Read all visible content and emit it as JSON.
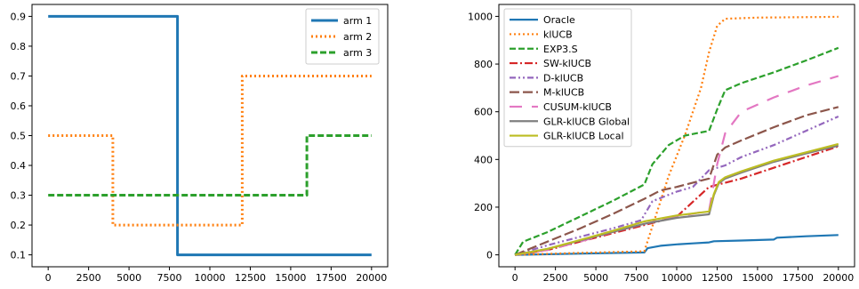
{
  "chart_data": [
    {
      "type": "line",
      "xlim": [
        -1000,
        21000
      ],
      "ylim": [
        0.06,
        0.94
      ],
      "xticks": [
        0,
        2500,
        5000,
        7500,
        10000,
        12500,
        15000,
        17500,
        20000
      ],
      "yticks": [
        0.1,
        0.2,
        0.3,
        0.4,
        0.5,
        0.6,
        0.7,
        0.8,
        0.9
      ],
      "legend_position": "top-right",
      "series": [
        {
          "name": "arm 1",
          "color": "#1f77b4",
          "dash": "solid",
          "x": [
            0,
            8000,
            8000,
            20000
          ],
          "y": [
            0.9,
            0.9,
            0.1,
            0.1
          ]
        },
        {
          "name": "arm 2",
          "color": "#ff7f0e",
          "dash": "dotted",
          "x": [
            0,
            4000,
            4000,
            12000,
            12000,
            20000
          ],
          "y": [
            0.5,
            0.5,
            0.2,
            0.2,
            0.7,
            0.7
          ]
        },
        {
          "name": "arm 3",
          "color": "#2ca02c",
          "dash": "dashed",
          "x": [
            0,
            16000,
            16000,
            20000
          ],
          "y": [
            0.3,
            0.3,
            0.5,
            0.5
          ]
        }
      ]
    },
    {
      "type": "line",
      "xlim": [
        -1000,
        21000
      ],
      "ylim": [
        -50,
        1050
      ],
      "xticks": [
        0,
        2500,
        5000,
        7500,
        10000,
        12500,
        15000,
        17500,
        20000
      ],
      "yticks": [
        0,
        200,
        400,
        600,
        800,
        1000
      ],
      "legend_position": "top-left",
      "series": [
        {
          "name": "Oracle",
          "color": "#1f77b4",
          "dash": "solid",
          "x": [
            0,
            8000,
            8200,
            9000,
            10000,
            11000,
            12000,
            12300,
            14000,
            16000,
            16200,
            18000,
            20000
          ],
          "y": [
            0,
            10,
            28,
            38,
            44,
            48,
            52,
            57,
            60,
            64,
            72,
            78,
            83
          ]
        },
        {
          "name": "klUCB",
          "color": "#ff7f0e",
          "dash": "dotted",
          "x": [
            0,
            4000,
            8000,
            8500,
            9500,
            10500,
            11500,
            12000,
            12500,
            13000,
            15000,
            20000
          ],
          "y": [
            0,
            8,
            15,
            120,
            330,
            500,
            700,
            850,
            960,
            990,
            995,
            998
          ]
        },
        {
          "name": "EXP3.S",
          "color": "#2ca02c",
          "dash": "dashed",
          "x": [
            0,
            500,
            2000,
            4000,
            6000,
            8000,
            8500,
            9500,
            10500,
            12000,
            12500,
            13000,
            14000,
            16000,
            18000,
            20000
          ],
          "y": [
            0,
            55,
            95,
            160,
            225,
            295,
            380,
            460,
            500,
            520,
            610,
            690,
            720,
            765,
            815,
            868
          ]
        },
        {
          "name": "SW-klUCB",
          "color": "#d62728",
          "dash": "dashdot",
          "x": [
            0,
            2000,
            4000,
            6000,
            8000,
            10000,
            12000,
            14000,
            16000,
            18000,
            20000
          ],
          "y": [
            0,
            20,
            55,
            90,
            125,
            160,
            285,
            320,
            365,
            410,
            455
          ]
        },
        {
          "name": "D-klUCB",
          "color": "#9467bd",
          "dash": "dashdotdot",
          "x": [
            0,
            2000,
            4000,
            6000,
            7800,
            8500,
            10000,
            11000,
            12000,
            13000,
            14000,
            16000,
            18000,
            20000
          ],
          "y": [
            0,
            40,
            75,
            110,
            145,
            225,
            265,
            285,
            355,
            375,
            410,
            460,
            520,
            580
          ]
        },
        {
          "name": "M-klUCB",
          "color": "#8c564b",
          "dash": "longdash",
          "x": [
            0,
            2000,
            4000,
            6000,
            8000,
            9000,
            10000,
            12000,
            12500,
            13000,
            14000,
            16000,
            18000,
            20000
          ],
          "y": [
            0,
            55,
            110,
            170,
            235,
            270,
            285,
            320,
            420,
            450,
            480,
            535,
            585,
            620
          ]
        },
        {
          "name": "CUSUM-klUCB",
          "color": "#e377c2",
          "dash": "loosedash",
          "x": [
            0,
            2000,
            4000,
            6000,
            8000,
            10000,
            12000,
            12500,
            13000,
            14000,
            16000,
            18000,
            20000
          ],
          "y": [
            0,
            20,
            55,
            95,
            130,
            160,
            185,
            380,
            510,
            600,
            660,
            710,
            750
          ]
        },
        {
          "name": "GLR-klUCB Global",
          "color": "#7f7f7f",
          "dash": "solid",
          "x": [
            0,
            2000,
            4000,
            6000,
            8000,
            10000,
            12000,
            12300,
            12600,
            13000,
            14000,
            16000,
            18000,
            20000
          ],
          "y": [
            0,
            25,
            60,
            95,
            130,
            155,
            170,
            250,
            300,
            320,
            345,
            390,
            425,
            458
          ]
        },
        {
          "name": "GLR-klUCB Local",
          "color": "#bcbd22",
          "dash": "solid",
          "x": [
            0,
            2000,
            4000,
            6000,
            8000,
            10000,
            12000,
            12300,
            12600,
            13000,
            14000,
            16000,
            18000,
            20000
          ],
          "y": [
            0,
            25,
            62,
            100,
            140,
            165,
            182,
            255,
            305,
            325,
            350,
            395,
            430,
            465
          ]
        }
      ]
    }
  ]
}
